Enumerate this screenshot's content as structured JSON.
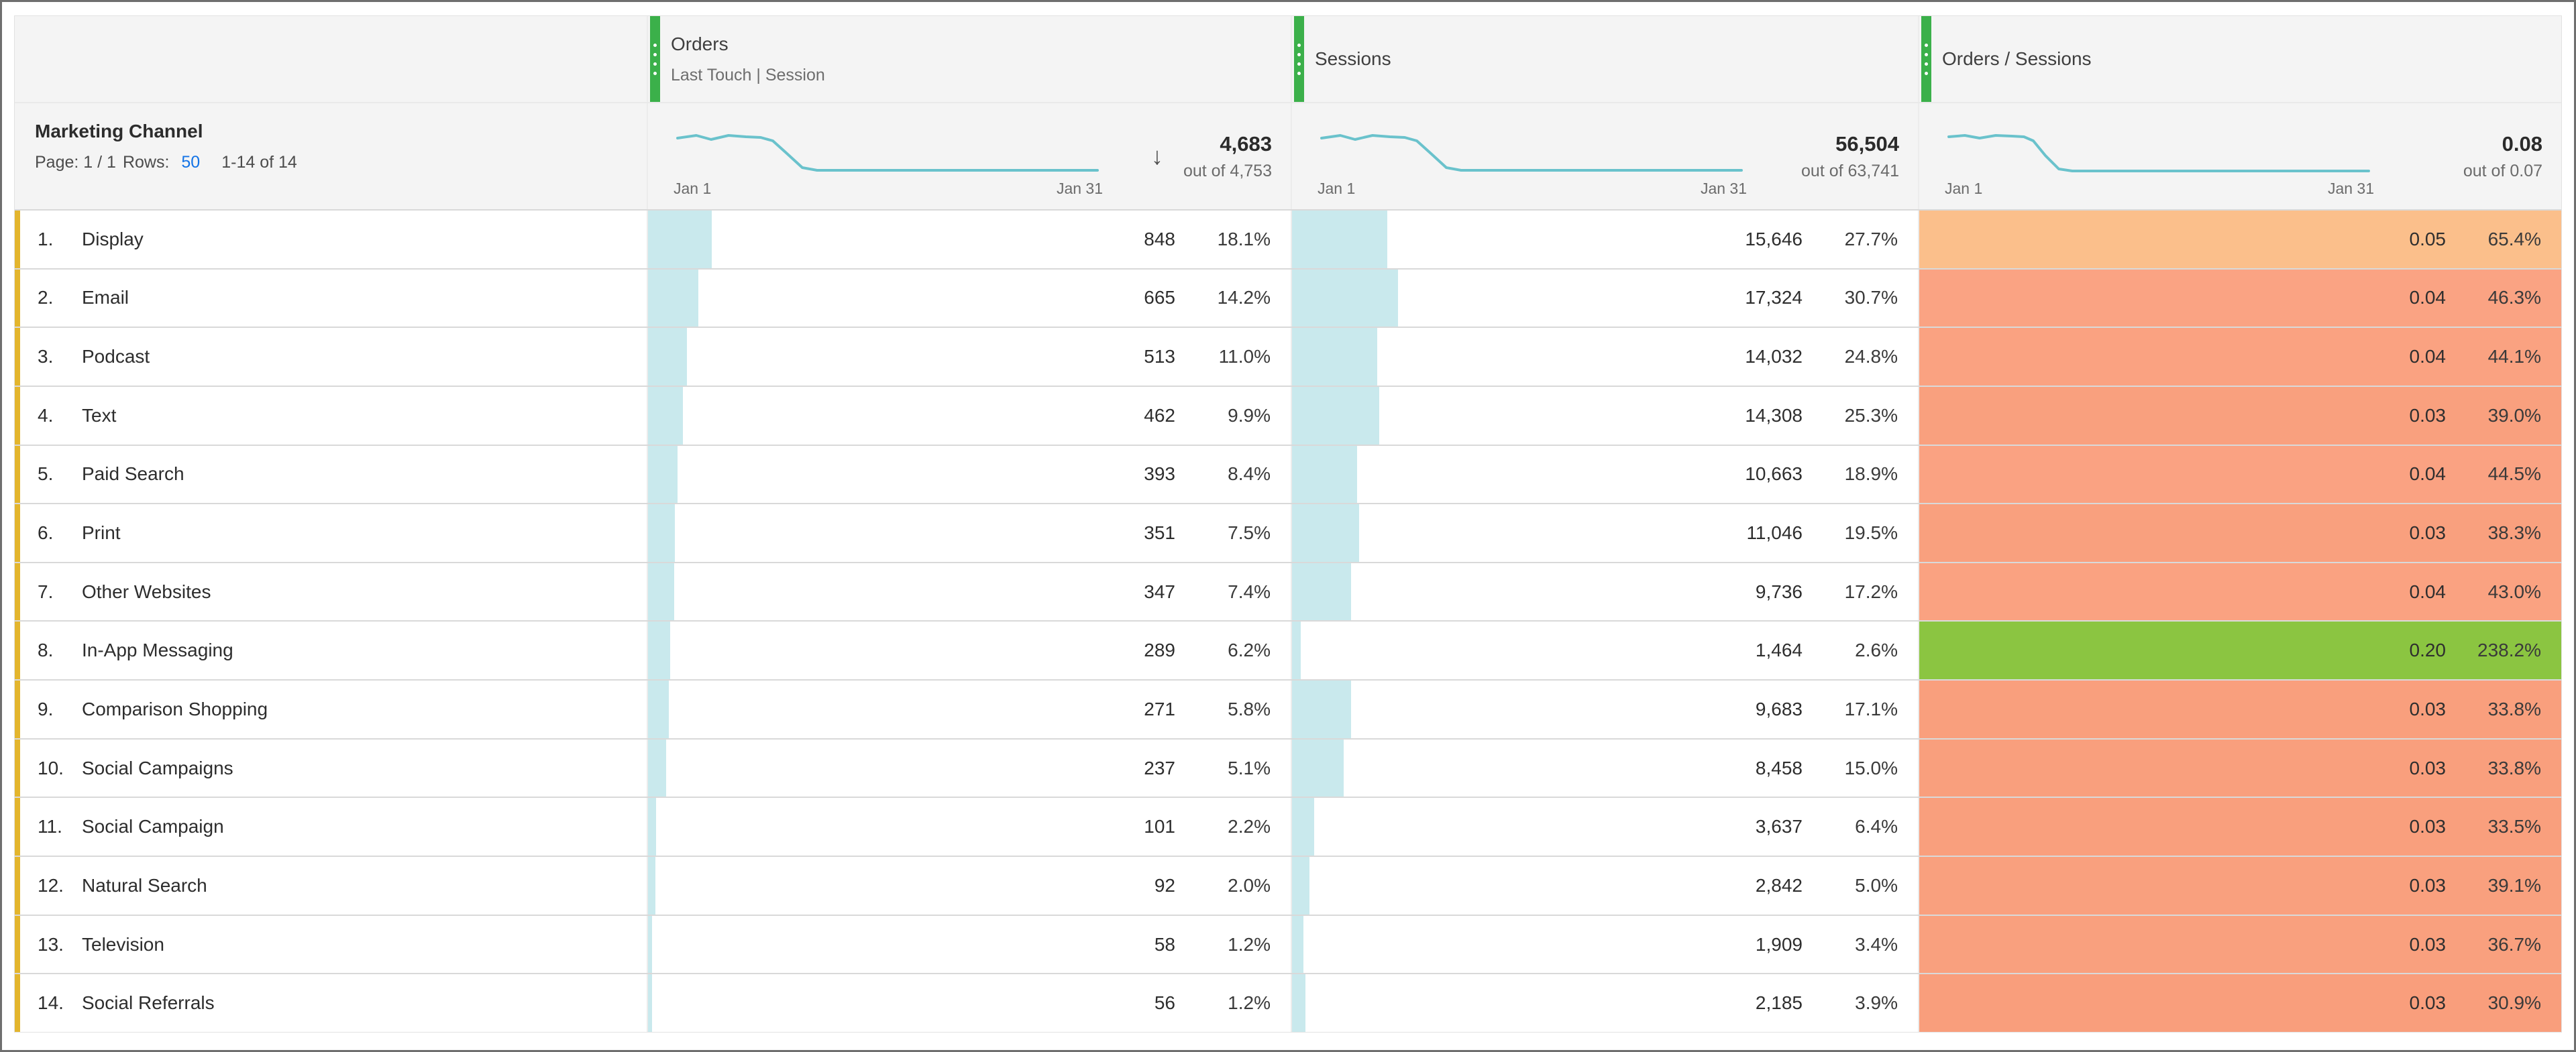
{
  "table": {
    "dimension_header": {
      "title": "Marketing Channel",
      "page_label": "Page: 1 / 1",
      "rows_label": "Rows:",
      "rows_value": "50",
      "range_text": "1-14 of 14"
    },
    "columns": [
      {
        "title": "Orders",
        "subtitle": "Last Touch | Session",
        "total": "4,683",
        "out_of": "out of 4,753",
        "spark_start": "Jan 1",
        "spark_end": "Jan 31",
        "sorted_desc": true
      },
      {
        "title": "Sessions",
        "subtitle": "",
        "total": "56,504",
        "out_of": "out of 63,741",
        "spark_start": "Jan 1",
        "spark_end": "Jan 31",
        "sorted_desc": false
      },
      {
        "title": "Orders / Sessions",
        "subtitle": "",
        "total": "0.08",
        "out_of": "out of 0.07",
        "spark_start": "Jan 1",
        "spark_end": "Jan 31",
        "sorted_desc": false
      }
    ],
    "rows": [
      {
        "index": "1.",
        "label": "Display",
        "orders": {
          "value": "848",
          "pct": "18.1%"
        },
        "sessions": {
          "value": "15,646",
          "pct": "27.7%"
        },
        "ratio": {
          "value": "0.05",
          "pct": "65.4%",
          "bg": "#fbbf8b"
        }
      },
      {
        "index": "2.",
        "label": "Email",
        "orders": {
          "value": "665",
          "pct": "14.2%"
        },
        "sessions": {
          "value": "17,324",
          "pct": "30.7%"
        },
        "ratio": {
          "value": "0.04",
          "pct": "46.3%",
          "bg": "#faa383"
        }
      },
      {
        "index": "3.",
        "label": "Podcast",
        "orders": {
          "value": "513",
          "pct": "11.0%"
        },
        "sessions": {
          "value": "14,032",
          "pct": "24.8%"
        },
        "ratio": {
          "value": "0.04",
          "pct": "44.1%",
          "bg": "#faa281"
        }
      },
      {
        "index": "4.",
        "label": "Text",
        "orders": {
          "value": "462",
          "pct": "9.9%"
        },
        "sessions": {
          "value": "14,308",
          "pct": "25.3%"
        },
        "ratio": {
          "value": "0.03",
          "pct": "39.0%",
          "bg": "#f9a07e"
        }
      },
      {
        "index": "5.",
        "label": "Paid Search",
        "orders": {
          "value": "393",
          "pct": "8.4%"
        },
        "sessions": {
          "value": "10,663",
          "pct": "18.9%"
        },
        "ratio": {
          "value": "0.04",
          "pct": "44.5%",
          "bg": "#faa282"
        }
      },
      {
        "index": "6.",
        "label": "Print",
        "orders": {
          "value": "351",
          "pct": "7.5%"
        },
        "sessions": {
          "value": "11,046",
          "pct": "19.5%"
        },
        "ratio": {
          "value": "0.03",
          "pct": "38.3%",
          "bg": "#f9a07e"
        }
      },
      {
        "index": "7.",
        "label": "Other Websites",
        "orders": {
          "value": "347",
          "pct": "7.4%"
        },
        "sessions": {
          "value": "9,736",
          "pct": "17.2%"
        },
        "ratio": {
          "value": "0.04",
          "pct": "43.0%",
          "bg": "#faa281"
        }
      },
      {
        "index": "8.",
        "label": "In-App Messaging",
        "orders": {
          "value": "289",
          "pct": "6.2%"
        },
        "sessions": {
          "value": "1,464",
          "pct": "2.6%"
        },
        "ratio": {
          "value": "0.20",
          "pct": "238.2%",
          "bg": "#8bc541"
        }
      },
      {
        "index": "9.",
        "label": "Comparison Shopping",
        "orders": {
          "value": "271",
          "pct": "5.8%"
        },
        "sessions": {
          "value": "9,683",
          "pct": "17.1%"
        },
        "ratio": {
          "value": "0.03",
          "pct": "33.8%",
          "bg": "#f99f7d"
        }
      },
      {
        "index": "10.",
        "label": "Social Campaigns",
        "orders": {
          "value": "237",
          "pct": "5.1%"
        },
        "sessions": {
          "value": "8,458",
          "pct": "15.0%"
        },
        "ratio": {
          "value": "0.03",
          "pct": "33.8%",
          "bg": "#f99f7d"
        }
      },
      {
        "index": "11.",
        "label": "Social Campaign",
        "orders": {
          "value": "101",
          "pct": "2.2%"
        },
        "sessions": {
          "value": "3,637",
          "pct": "6.4%"
        },
        "ratio": {
          "value": "0.03",
          "pct": "33.5%",
          "bg": "#f99f7d"
        }
      },
      {
        "index": "12.",
        "label": "Natural Search",
        "orders": {
          "value": "92",
          "pct": "2.0%"
        },
        "sessions": {
          "value": "2,842",
          "pct": "5.0%"
        },
        "ratio": {
          "value": "0.03",
          "pct": "39.1%",
          "bg": "#f9a07e"
        }
      },
      {
        "index": "13.",
        "label": "Television",
        "orders": {
          "value": "58",
          "pct": "1.2%"
        },
        "sessions": {
          "value": "1,909",
          "pct": "3.4%"
        },
        "ratio": {
          "value": "0.03",
          "pct": "36.7%",
          "bg": "#f9a07e"
        }
      },
      {
        "index": "14.",
        "label": "Social Referrals",
        "orders": {
          "value": "56",
          "pct": "1.2%"
        },
        "sessions": {
          "value": "2,185",
          "pct": "3.9%"
        },
        "ratio": {
          "value": "0.03",
          "pct": "30.9%",
          "bg": "#f99e7c"
        }
      }
    ],
    "colors": {
      "accent_green": "#3bb04a",
      "accent_yellow": "#e3b52d",
      "bar_cyan": "#c9e9ed",
      "sparkline": "#6ac2cc",
      "link_blue": "#1373e6"
    },
    "icons": {
      "sort_descending": "↓"
    }
  }
}
